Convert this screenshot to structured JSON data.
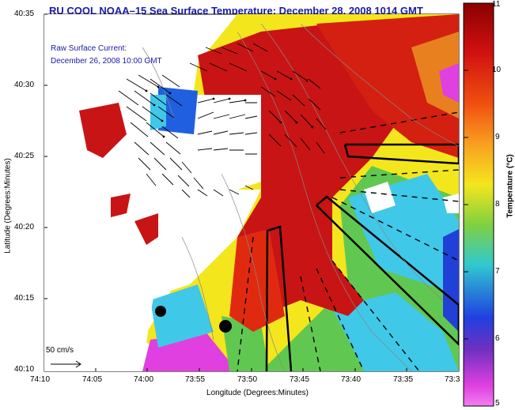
{
  "title": "RU COOL  NOAA–15  Sea Surface Temperature:  December 28, 2008 1014 GMT",
  "current_label_line1": "Raw Surface Current:",
  "current_label_line2": "December 26, 2008 10:00 GMT",
  "ylabel": "Latitude (Degrees:Minutes)",
  "xlabel": "Longitude (Degrees:Minutes)",
  "colorbar_label": "Temperature (°C)",
  "scale_label": "50 cm/s",
  "yticks": [
    "40:35",
    "40:30",
    "40:25",
    "40:20",
    "40:15",
    "40:10"
  ],
  "xticks": [
    "74:10",
    "74:05",
    "74:00",
    "73:55",
    "73:50",
    "73:45",
    "73:40",
    "73:35",
    "73:3"
  ],
  "colorbar_ticks": [
    "11",
    "10",
    "9",
    "8",
    "7",
    "6",
    "5"
  ],
  "colors": {
    "warm": "#c81414",
    "hot": "#e02a10",
    "orange": "#f08018",
    "yellow": "#f4e61c",
    "green": "#60c850",
    "cyan": "#40c8e8",
    "blue": "#2040d8",
    "magenta": "#e040e0",
    "title": "#1a1aa8"
  }
}
